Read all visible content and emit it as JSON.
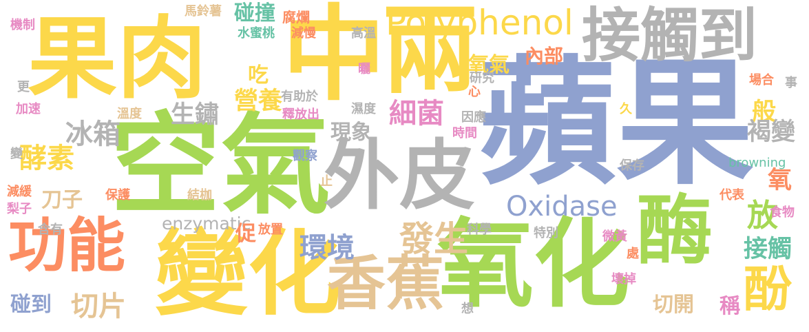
{
  "colors": {
    "yellow": "#fcd84a",
    "blue": "#8fa1cf",
    "green": "#a6d854",
    "gray": "#b3b3b3",
    "orange": "#fc8d62",
    "tan": "#e5c494",
    "teal": "#66c2a5",
    "pink": "#e78ac3"
  },
  "words": [
    {
      "text": "蘋果",
      "color": "blue"
    },
    {
      "text": "空氣",
      "color": "green"
    },
    {
      "text": "中",
      "color": "yellow"
    },
    {
      "text": "果肉",
      "color": "yellow"
    },
    {
      "text": "氧化",
      "color": "green"
    },
    {
      "text": "變化",
      "color": "yellow"
    },
    {
      "text": "兩",
      "color": "yellow"
    },
    {
      "text": "酶",
      "color": "green"
    },
    {
      "text": "外皮",
      "color": "gray"
    },
    {
      "text": "香蕉",
      "color": "tan"
    },
    {
      "text": "接觸到",
      "color": "gray"
    },
    {
      "text": "功能",
      "color": "orange"
    },
    {
      "text": "Polyphenol",
      "color": "yellow"
    },
    {
      "text": "Oxidase",
      "color": "blue"
    },
    {
      "text": "酚",
      "color": "yellow"
    },
    {
      "text": "放",
      "color": "green"
    },
    {
      "text": "發生",
      "color": "tan"
    },
    {
      "text": "環境",
      "color": "blue"
    },
    {
      "text": "細菌",
      "color": "pink"
    },
    {
      "text": "冰箱",
      "color": "gray"
    },
    {
      "text": "酵素",
      "color": "yellow"
    },
    {
      "text": "切片",
      "color": "tan"
    },
    {
      "text": "碰到",
      "color": "blue"
    },
    {
      "text": "刀子",
      "color": "tan"
    },
    {
      "text": "生鏽",
      "color": "gray"
    },
    {
      "text": "現象",
      "color": "gray"
    },
    {
      "text": "營養",
      "color": "yellow"
    },
    {
      "text": "吃",
      "color": "yellow"
    },
    {
      "text": "碰撞",
      "color": "teal"
    },
    {
      "text": "氧氣",
      "color": "yellow"
    },
    {
      "text": "內部",
      "color": "orange"
    },
    {
      "text": "般",
      "color": "yellow"
    },
    {
      "text": "褐變",
      "color": "gray"
    },
    {
      "text": "接觸",
      "color": "teal"
    },
    {
      "text": "氧",
      "color": "orange"
    },
    {
      "text": "切開",
      "color": "tan"
    },
    {
      "text": "稱",
      "color": "pink"
    },
    {
      "text": "enzymatic",
      "color": "gray"
    },
    {
      "text": "促",
      "color": "orange"
    },
    {
      "text": "browning",
      "color": "teal"
    },
    {
      "text": "機制",
      "color": "pink"
    },
    {
      "text": "更",
      "color": "gray"
    },
    {
      "text": "加速",
      "color": "pink"
    },
    {
      "text": "變",
      "color": "gray"
    },
    {
      "text": "減緩",
      "color": "orange"
    },
    {
      "text": "梨子",
      "color": "pink"
    },
    {
      "text": "含有",
      "color": "gray"
    },
    {
      "text": "馬鈴薯",
      "color": "tan"
    },
    {
      "text": "水蜜桃",
      "color": "teal"
    },
    {
      "text": "腐爛",
      "color": "orange"
    },
    {
      "text": "減慢",
      "color": "orange"
    },
    {
      "text": "高溫",
      "color": "gray"
    },
    {
      "text": "曬",
      "color": "pink"
    },
    {
      "text": "研究",
      "color": "gray"
    },
    {
      "text": "心",
      "color": "orange"
    },
    {
      "text": "有助於",
      "color": "gray"
    },
    {
      "text": "釋放出",
      "color": "pink"
    },
    {
      "text": "濕度",
      "color": "gray"
    },
    {
      "text": "溫度",
      "color": "tan"
    },
    {
      "text": "因應",
      "color": "gray"
    },
    {
      "text": "久",
      "color": "yellow"
    },
    {
      "text": "時間",
      "color": "pink"
    },
    {
      "text": "觀察",
      "color": "blue"
    },
    {
      "text": "止",
      "color": "tan"
    },
    {
      "text": "保存",
      "color": "gray"
    },
    {
      "text": "場合",
      "color": "orange"
    },
    {
      "text": "事",
      "color": "gray"
    },
    {
      "text": "保護",
      "color": "orange"
    },
    {
      "text": "結枷",
      "color": "tan"
    },
    {
      "text": "代表",
      "color": "orange"
    },
    {
      "text": "食物",
      "color": "pink"
    },
    {
      "text": "放置",
      "color": "orange"
    },
    {
      "text": "科學",
      "color": "gray"
    },
    {
      "text": "特別",
      "color": "gray"
    },
    {
      "text": "微黃",
      "color": "pink"
    },
    {
      "text": "處",
      "color": "orange"
    },
    {
      "text": "壞掉",
      "color": "pink"
    },
    {
      "text": "想",
      "color": "gray"
    }
  ]
}
